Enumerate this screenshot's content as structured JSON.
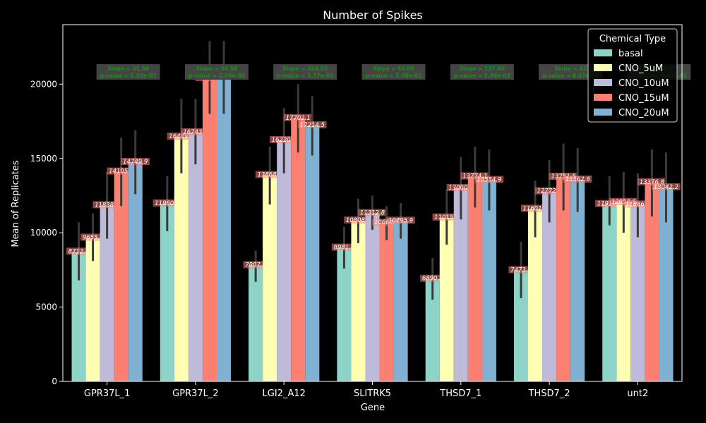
{
  "chart_data": {
    "type": "bar",
    "title": "Number of Spikes",
    "xlabel": "Gene",
    "ylabel": "Mean of Replicates",
    "ylim": [
      0,
      24000
    ],
    "yticks": [
      0,
      5000,
      10000,
      15000,
      20000
    ],
    "categories": [
      "GPR37L_1",
      "GPR37L_2",
      "LGI2_A12",
      "SLITRK5",
      "THSD7_1",
      "THSD7_2",
      "unt2"
    ],
    "series": [
      {
        "name": "basal",
        "color": "#8dd3c7",
        "values": [
          8712.8,
          11960.1,
          7807.3,
          8981.4,
          6890.5,
          7473.3,
          11919.8
        ],
        "err_low": [
          6800,
          10100,
          6700,
          7600,
          5500,
          5600,
          10500
        ],
        "err_high": [
          10700,
          13800,
          8800,
          10400,
          8300,
          9400,
          13800
        ]
      },
      {
        "name": "CNO_5uM",
        "color": "#ffffb3",
        "values": [
          9655.2,
          16449.8,
          13868.9,
          10808.1,
          11015.2,
          11601.7,
          12058.6
        ],
        "err_low": [
          8100,
          14000,
          11900,
          9300,
          9200,
          9700,
          10000
        ],
        "err_high": [
          11300,
          19000,
          15800,
          12300,
          12900,
          13500,
          14100
        ]
      },
      {
        "name": "CNO_10uM",
        "color": "#bebada",
        "values": [
          11838.4,
          16743.1,
          16220.6,
          11312.8,
          13000.4,
          12772.8,
          11886.7
        ],
        "err_low": [
          9600,
          14600,
          14000,
          10200,
          10900,
          10700,
          9700
        ],
        "err_high": [
          14100,
          19000,
          18400,
          12500,
          15100,
          14900,
          14000
        ]
      },
      {
        "name": "CNO_15uM",
        "color": "#fb8072",
        "values": [
          14105.6,
          20391.2,
          17702.1,
          10664.5,
          13774.1,
          13751.5,
          13376.8
        ],
        "err_low": [
          11800,
          18000,
          15400,
          9500,
          11700,
          11500,
          11100
        ],
        "err_high": [
          16400,
          22900,
          20000,
          11800,
          15800,
          16000,
          15600
        ]
      },
      {
        "name": "CNO_20uM",
        "color": "#80b1d3",
        "values": [
          14749.9,
          20719.5,
          17214.5,
          10795.9,
          13534.9,
          13562.6,
          13042.2
        ],
        "err_low": [
          12600,
          18000,
          15200,
          9600,
          11500,
          11400,
          10700
        ],
        "err_high": [
          16900,
          22900,
          19200,
          12000,
          15600,
          15700,
          15400
        ]
      }
    ],
    "stats_boxes": [
      {
        "slope": "Slope = 31.98",
        "pvalue": "p-value = 6.58e-07"
      },
      {
        "slope": "Slope = 30.98",
        "pvalue": "p-value = 2.09e-05"
      },
      {
        "slope": "Slope = 364.03",
        "pvalue": "p-value = 3.37e-03"
      },
      {
        "slope": "Slope = 60.00",
        "pvalue": "p-value = 5.98e-01"
      },
      {
        "slope": "Slope = 137.80",
        "pvalue": "p-value = 5.98e-03"
      },
      {
        "slope": "Slope = 42",
        "pvalue": "p-value = 8.47e-03"
      },
      {
        "slope": "Slope = 7",
        "pvalue": "p-value = 6.87e-01"
      }
    ],
    "legend": {
      "title": "Chemical Type",
      "placement": "top-right"
    },
    "grid": false
  }
}
